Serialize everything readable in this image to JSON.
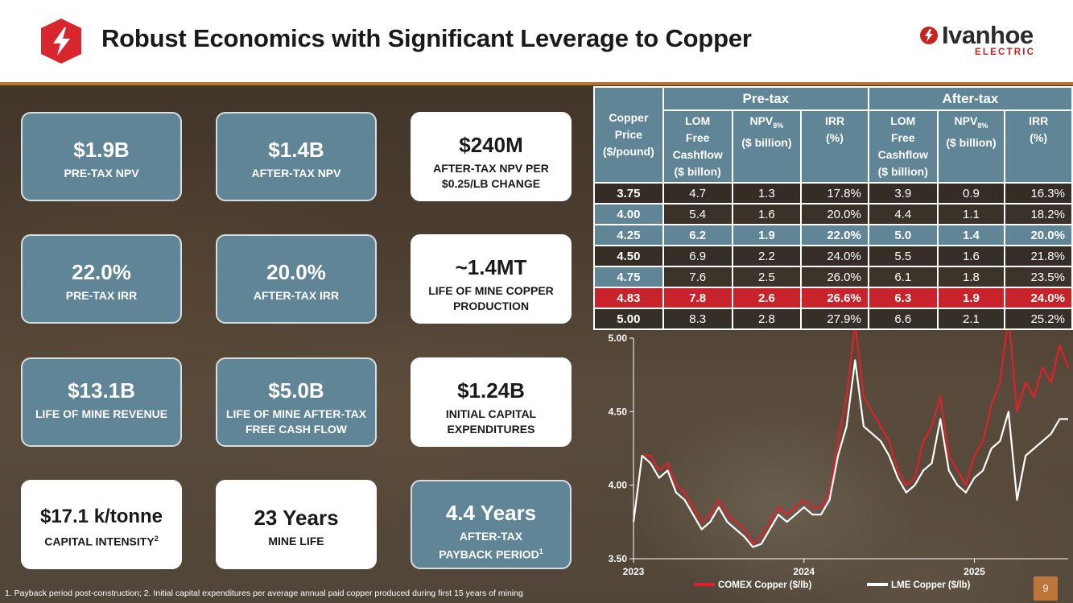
{
  "header": {
    "title": "Robust Economics with Significant Leverage to Copper",
    "brand_name": "Ivanhoe",
    "brand_sub": "ELECTRIC"
  },
  "colors": {
    "accent_blue": "#5f8596",
    "accent_red": "#c8232b",
    "rule": "#b8732f"
  },
  "cards": [
    {
      "big": "$1.9B",
      "small": "PRE-TAX NPV",
      "style": "blue"
    },
    {
      "big": "$1.4B",
      "small": "AFTER-TAX NPV",
      "style": "blue"
    },
    {
      "big": "$240M",
      "small": "AFTER-TAX NPV PER $0.25/LB CHANGE",
      "style": "white"
    },
    {
      "big": "22.0%",
      "small": "PRE-TAX IRR",
      "style": "blue"
    },
    {
      "big": "20.0%",
      "small": "AFTER-TAX IRR",
      "style": "blue"
    },
    {
      "big": "~1.4MT",
      "small": "LIFE OF MINE COPPER PRODUCTION",
      "style": "white"
    },
    {
      "big": "$13.1B",
      "small": "LIFE OF MINE REVENUE",
      "style": "blue"
    },
    {
      "big": "$5.0B",
      "small": "LIFE OF MINE AFTER-TAX FREE CASH FLOW",
      "style": "blue"
    },
    {
      "big": "$1.24B",
      "small": "INITIAL CAPITAL EXPENDITURES",
      "style": "white"
    },
    {
      "big": "$17.1 k/tonne",
      "small": "CAPITAL INTENSITY",
      "sup": "2",
      "style": "white"
    },
    {
      "big": "23 Years",
      "small": "MINE LIFE",
      "style": "white"
    },
    {
      "big": "4.4 Years",
      "small1": "AFTER-TAX",
      "small2": "PAYBACK PERIOD",
      "sup": "1",
      "style": "blue"
    }
  ],
  "table": {
    "group_pretax": "Pre-tax",
    "group_aftertax": "After-tax",
    "col_price": [
      "Copper",
      "Price",
      "($/pound)"
    ],
    "col_lom": [
      "LOM",
      "Free",
      "Cashflow",
      "($ billon)"
    ],
    "col_lom_after": [
      "LOM",
      "Free",
      "Cashflow",
      "($ billion)"
    ],
    "col_npv": [
      "NPV",
      "8%",
      "($ billion)"
    ],
    "col_irr": [
      "IRR",
      "(%)"
    ],
    "rows": [
      [
        "3.75",
        "4.7",
        "1.3",
        "17.8%",
        "3.9",
        "0.9",
        "16.3%"
      ],
      [
        "4.00",
        "5.4",
        "1.6",
        "20.0%",
        "4.4",
        "1.1",
        "18.2%"
      ],
      [
        "4.25",
        "6.2",
        "1.9",
        "22.0%",
        "5.0",
        "1.4",
        "20.0%"
      ],
      [
        "4.50",
        "6.9",
        "2.2",
        "24.0%",
        "5.5",
        "1.6",
        "21.8%"
      ],
      [
        "4.75",
        "7.6",
        "2.5",
        "26.0%",
        "6.1",
        "1.8",
        "23.5%"
      ],
      [
        "4.83",
        "7.8",
        "2.6",
        "26.6%",
        "6.3",
        "1.9",
        "24.0%"
      ],
      [
        "5.00",
        "8.3",
        "2.8",
        "27.9%",
        "6.6",
        "2.1",
        "25.2%"
      ]
    ]
  },
  "chart_data": {
    "type": "line",
    "title": "",
    "xlabel": "",
    "ylabel": "",
    "ylim": [
      3.5,
      5.0
    ],
    "yticks": [
      "5.00",
      "4.50",
      "4.00",
      "3.50"
    ],
    "xticks": [
      "2023",
      "2024",
      "2025"
    ],
    "legend_position": "bottom",
    "x": [
      2023.0,
      2023.05,
      2023.1,
      2023.15,
      2023.2,
      2023.25,
      2023.3,
      2023.35,
      2023.4,
      2023.45,
      2023.5,
      2023.55,
      2023.6,
      2023.65,
      2023.7,
      2023.75,
      2023.8,
      2023.85,
      2023.9,
      2023.95,
      2024.0,
      2024.05,
      2024.1,
      2024.15,
      2024.2,
      2024.25,
      2024.3,
      2024.35,
      2024.4,
      2024.45,
      2024.5,
      2024.55,
      2024.6,
      2024.65,
      2024.7,
      2024.75,
      2024.8,
      2024.85,
      2024.9,
      2024.95,
      2025.0,
      2025.05,
      2025.1,
      2025.15,
      2025.2,
      2025.25,
      2025.3,
      2025.35,
      2025.4,
      2025.45,
      2025.5,
      2025.55
    ],
    "series": [
      {
        "name": "COMEX Copper ($/lb)",
        "color": "#e0202a",
        "values": [
          3.75,
          4.2,
          4.2,
          4.1,
          4.15,
          4.0,
          3.95,
          3.85,
          3.75,
          3.8,
          3.9,
          3.8,
          3.75,
          3.7,
          3.6,
          3.65,
          3.75,
          3.85,
          3.8,
          3.85,
          3.9,
          3.85,
          3.85,
          3.95,
          4.3,
          4.6,
          5.1,
          4.6,
          4.5,
          4.4,
          4.3,
          4.1,
          4.0,
          4.05,
          4.3,
          4.4,
          4.6,
          4.2,
          4.1,
          4.0,
          4.2,
          4.3,
          4.55,
          4.7,
          5.15,
          4.5,
          4.7,
          4.6,
          4.8,
          4.7,
          4.95,
          4.8
        ]
      },
      {
        "name": "LME Copper ($/lb)",
        "color": "#ffffff",
        "values": [
          3.75,
          4.2,
          4.15,
          4.05,
          4.1,
          3.95,
          3.9,
          3.8,
          3.7,
          3.75,
          3.85,
          3.75,
          3.7,
          3.65,
          3.58,
          3.6,
          3.7,
          3.8,
          3.75,
          3.8,
          3.85,
          3.8,
          3.8,
          3.9,
          4.2,
          4.4,
          4.85,
          4.4,
          4.35,
          4.3,
          4.2,
          4.05,
          3.95,
          4.0,
          4.1,
          4.15,
          4.45,
          4.1,
          4.0,
          3.95,
          4.05,
          4.1,
          4.25,
          4.3,
          4.5,
          3.9,
          4.2,
          4.25,
          4.3,
          4.35,
          4.45,
          4.45
        ]
      }
    ]
  },
  "footnote": "1. Payback period post-construction; 2. Initial capital expenditures per average annual paid copper produced during first 15 years of mining",
  "page_number": "9"
}
